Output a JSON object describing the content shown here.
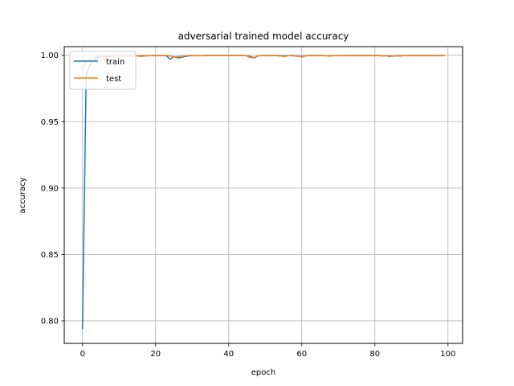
{
  "chart_data": {
    "type": "line",
    "title": "adversarial trained model accuracy",
    "xlabel": "epoch",
    "ylabel": "accuracy",
    "xlim": [
      -5,
      104
    ],
    "ylim": [
      0.783,
      1.0065
    ],
    "xticks": [
      0,
      20,
      40,
      60,
      80,
      100
    ],
    "yticks": [
      0.8,
      0.85,
      0.9,
      0.95,
      1.0
    ],
    "xtick_labels": [
      "0",
      "20",
      "40",
      "60",
      "80",
      "100"
    ],
    "ytick_labels": [
      "0.80",
      "0.85",
      "0.90",
      "0.95",
      "1.00"
    ],
    "grid": true,
    "legend_position": "upper-left",
    "x": [
      0,
      1,
      2,
      3,
      4,
      5,
      6,
      7,
      8,
      9,
      10,
      11,
      12,
      13,
      14,
      15,
      16,
      17,
      18,
      19,
      20,
      21,
      22,
      23,
      24,
      25,
      26,
      27,
      28,
      29,
      30,
      31,
      32,
      33,
      34,
      35,
      36,
      37,
      38,
      39,
      40,
      41,
      42,
      43,
      44,
      45,
      46,
      47,
      48,
      49,
      50,
      51,
      52,
      53,
      54,
      55,
      56,
      57,
      58,
      59,
      60,
      61,
      62,
      63,
      64,
      65,
      66,
      67,
      68,
      69,
      70,
      71,
      72,
      73,
      74,
      75,
      76,
      77,
      78,
      79,
      80,
      81,
      82,
      83,
      84,
      85,
      86,
      87,
      88,
      89,
      90,
      91,
      92,
      93,
      94,
      95,
      96,
      97,
      98,
      99
    ],
    "series": [
      {
        "name": "train",
        "color": "#1f77b4",
        "values": [
          0.794,
          0.985,
          0.993,
          0.996,
          0.998,
          0.999,
          0.999,
          0.999,
          0.999,
          0.9995,
          0.9995,
          0.9995,
          0.9995,
          0.9995,
          0.9995,
          0.9995,
          0.9995,
          0.9995,
          0.9997,
          0.9997,
          0.9997,
          0.9997,
          0.9997,
          0.9995,
          0.997,
          0.999,
          0.998,
          0.9985,
          0.999,
          0.9995,
          0.9997,
          0.9997,
          0.9997,
          0.9997,
          0.9998,
          0.9998,
          0.9998,
          0.9998,
          0.9998,
          0.9998,
          0.9998,
          0.9998,
          0.9998,
          0.9998,
          0.9998,
          0.9996,
          0.999,
          0.998,
          0.9995,
          0.9997,
          0.9997,
          0.9997,
          0.9997,
          0.9997,
          0.9995,
          0.9995,
          0.9997,
          0.9997,
          0.9995,
          0.9993,
          0.999,
          0.9995,
          0.9997,
          0.9997,
          0.9997,
          0.9997,
          0.9997,
          0.9996,
          0.9997,
          0.9997,
          0.9997,
          0.9997,
          0.9997,
          0.9997,
          0.9997,
          0.9997,
          0.9997,
          0.9997,
          0.9997,
          0.9997,
          0.9997,
          0.9997,
          0.9995,
          0.9997,
          0.9995,
          0.9993,
          0.9997,
          0.9997,
          0.9997,
          0.9997,
          0.9997,
          0.9997,
          0.9997,
          0.9997,
          0.9997,
          0.9997,
          0.9997,
          0.9997,
          0.9997,
          0.9997
        ]
      },
      {
        "name": "test",
        "color": "#ff7f0e",
        "values": [
          0.99,
          0.995,
          0.997,
          0.998,
          0.999,
          0.999,
          0.9995,
          0.9995,
          0.9995,
          0.9995,
          0.9995,
          0.9995,
          0.9995,
          0.9995,
          0.9995,
          0.9995,
          0.999,
          0.9995,
          0.9995,
          0.9998,
          0.9998,
          0.9998,
          0.9998,
          0.9998,
          0.9995,
          0.9985,
          0.999,
          0.999,
          0.9995,
          0.9998,
          0.9998,
          0.9998,
          0.9995,
          0.9998,
          0.9998,
          0.9998,
          0.9998,
          0.9998,
          0.9998,
          0.9998,
          0.9998,
          0.9998,
          0.9998,
          0.9998,
          0.9998,
          0.9995,
          0.998,
          0.9985,
          0.9995,
          0.9998,
          0.9998,
          0.9998,
          0.9998,
          0.9998,
          0.9998,
          0.999,
          0.9995,
          0.9998,
          0.9998,
          0.9995,
          0.9985,
          0.9995,
          0.9998,
          0.9998,
          0.9998,
          0.9998,
          0.9998,
          0.9995,
          0.9993,
          0.9998,
          0.9998,
          0.9995,
          0.9998,
          0.9998,
          0.9998,
          0.9998,
          0.9998,
          0.9998,
          0.9998,
          0.9998,
          0.9998,
          0.9998,
          0.9995,
          0.9998,
          0.999,
          0.9995,
          0.9995,
          0.9993,
          0.9998,
          0.9998,
          0.9998,
          0.9998,
          0.9998,
          0.9998,
          0.9998,
          0.9998,
          0.9998,
          0.9998,
          0.9998,
          0.9998
        ]
      }
    ]
  }
}
